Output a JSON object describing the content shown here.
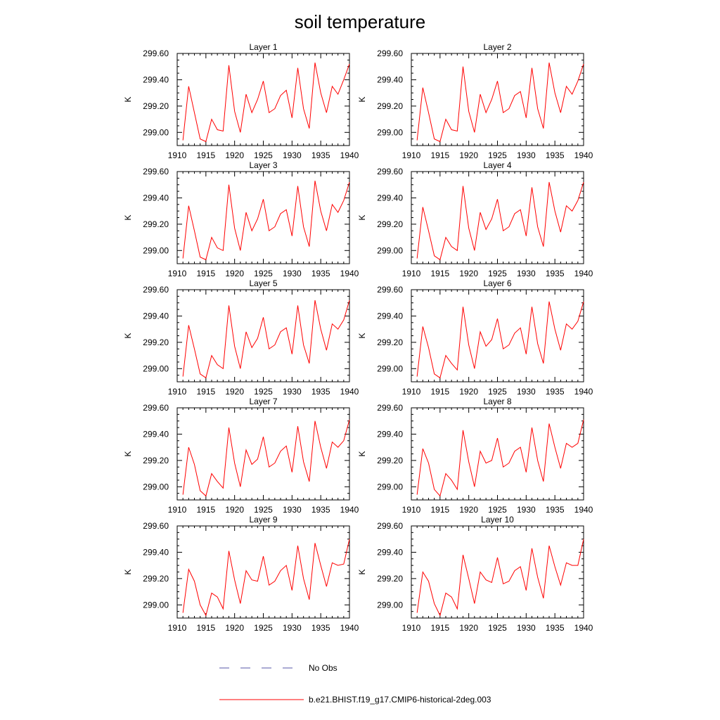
{
  "figure": {
    "title": "soil temperature"
  },
  "legend": {
    "placement": "bottom-center",
    "entries": [
      {
        "label": "No Obs",
        "color": "#5555aa",
        "style": "dashed"
      },
      {
        "label": "b.e21.BHIST.f19_g17.CMIP6-historical-2deg.003",
        "color": "#ff0000",
        "style": "solid"
      }
    ]
  },
  "chart_data": [
    {
      "type": "line",
      "title": "Layer 1",
      "ylabel": "K",
      "xlim": [
        1910,
        1940
      ],
      "ylim": [
        298.9,
        299.6
      ],
      "xticks": [
        "1910",
        "1915",
        "1920",
        "1925",
        "1930",
        "1935",
        "1940"
      ],
      "yticks": [
        "299.00",
        "299.20",
        "299.40",
        "299.60"
      ],
      "x": [
        1911,
        1912,
        1913,
        1914,
        1915,
        1916,
        1917,
        1918,
        1919,
        1920,
        1921,
        1922,
        1923,
        1924,
        1925,
        1926,
        1927,
        1928,
        1929,
        1930,
        1931,
        1932,
        1933,
        1934,
        1935,
        1936,
        1937,
        1938,
        1939,
        1940
      ],
      "series": [
        {
          "color": "#ff0000",
          "values": [
            298.94,
            299.35,
            299.15,
            298.95,
            298.93,
            299.1,
            299.02,
            299.01,
            299.51,
            299.16,
            299.0,
            299.29,
            299.15,
            299.25,
            299.39,
            299.15,
            299.18,
            299.28,
            299.32,
            299.11,
            299.49,
            299.18,
            299.03,
            299.53,
            299.3,
            299.15,
            299.35,
            299.29,
            299.4,
            299.52
          ]
        }
      ]
    },
    {
      "type": "line",
      "title": "Layer 2",
      "ylabel": "K",
      "xlim": [
        1910,
        1940
      ],
      "ylim": [
        298.9,
        299.6
      ],
      "xticks": [
        "1910",
        "1915",
        "1920",
        "1925",
        "1930",
        "1935",
        "1940"
      ],
      "yticks": [
        "299.00",
        "299.20",
        "299.40",
        "299.60"
      ],
      "x": [
        1911,
        1912,
        1913,
        1914,
        1915,
        1916,
        1917,
        1918,
        1919,
        1920,
        1921,
        1922,
        1923,
        1924,
        1925,
        1926,
        1927,
        1928,
        1929,
        1930,
        1931,
        1932,
        1933,
        1934,
        1935,
        1936,
        1937,
        1938,
        1939,
        1940
      ],
      "series": [
        {
          "color": "#ff0000",
          "values": [
            298.94,
            299.34,
            299.15,
            298.95,
            298.93,
            299.1,
            299.02,
            299.01,
            299.5,
            299.16,
            299.0,
            299.29,
            299.15,
            299.25,
            299.39,
            299.15,
            299.18,
            299.28,
            299.31,
            299.11,
            299.49,
            299.18,
            299.03,
            299.53,
            299.3,
            299.15,
            299.35,
            299.29,
            299.39,
            299.52
          ]
        }
      ]
    },
    {
      "type": "line",
      "title": "Layer 3",
      "ylabel": "K",
      "xlim": [
        1910,
        1940
      ],
      "ylim": [
        298.9,
        299.6
      ],
      "xticks": [
        "1910",
        "1915",
        "1920",
        "1925",
        "1930",
        "1935",
        "1940"
      ],
      "yticks": [
        "299.00",
        "299.20",
        "299.40",
        "299.60"
      ],
      "x": [
        1911,
        1912,
        1913,
        1914,
        1915,
        1916,
        1917,
        1918,
        1919,
        1920,
        1921,
        1922,
        1923,
        1924,
        1925,
        1926,
        1927,
        1928,
        1929,
        1930,
        1931,
        1932,
        1933,
        1934,
        1935,
        1936,
        1937,
        1938,
        1939,
        1940
      ],
      "series": [
        {
          "color": "#ff0000",
          "values": [
            298.94,
            299.34,
            299.15,
            298.95,
            298.93,
            299.1,
            299.02,
            299.0,
            299.5,
            299.17,
            299.0,
            299.29,
            299.15,
            299.24,
            299.39,
            299.15,
            299.18,
            299.28,
            299.31,
            299.11,
            299.49,
            299.18,
            299.03,
            299.53,
            299.3,
            299.15,
            299.35,
            299.29,
            299.38,
            299.52
          ]
        }
      ]
    },
    {
      "type": "line",
      "title": "Layer 4",
      "ylabel": "K",
      "xlim": [
        1910,
        1940
      ],
      "ylim": [
        298.9,
        299.6
      ],
      "xticks": [
        "1910",
        "1915",
        "1920",
        "1925",
        "1930",
        "1935",
        "1940"
      ],
      "yticks": [
        "299.00",
        "299.20",
        "299.40",
        "299.60"
      ],
      "x": [
        1911,
        1912,
        1913,
        1914,
        1915,
        1916,
        1917,
        1918,
        1919,
        1920,
        1921,
        1922,
        1923,
        1924,
        1925,
        1926,
        1927,
        1928,
        1929,
        1930,
        1931,
        1932,
        1933,
        1934,
        1935,
        1936,
        1937,
        1938,
        1939,
        1940
      ],
      "series": [
        {
          "color": "#ff0000",
          "values": [
            298.94,
            299.33,
            299.15,
            298.96,
            298.93,
            299.1,
            299.03,
            299.0,
            299.49,
            299.17,
            299.0,
            299.29,
            299.16,
            299.24,
            299.39,
            299.15,
            299.18,
            299.28,
            299.31,
            299.11,
            299.48,
            299.18,
            299.03,
            299.52,
            299.3,
            299.14,
            299.34,
            299.3,
            299.38,
            299.52
          ]
        }
      ]
    },
    {
      "type": "line",
      "title": "Layer 5",
      "ylabel": "K",
      "xlim": [
        1910,
        1940
      ],
      "ylim": [
        298.9,
        299.6
      ],
      "xticks": [
        "1910",
        "1915",
        "1920",
        "1925",
        "1930",
        "1935",
        "1940"
      ],
      "yticks": [
        "299.00",
        "299.20",
        "299.40",
        "299.60"
      ],
      "x": [
        1911,
        1912,
        1913,
        1914,
        1915,
        1916,
        1917,
        1918,
        1919,
        1920,
        1921,
        1922,
        1923,
        1924,
        1925,
        1926,
        1927,
        1928,
        1929,
        1930,
        1931,
        1932,
        1933,
        1934,
        1935,
        1936,
        1937,
        1938,
        1939,
        1940
      ],
      "series": [
        {
          "color": "#ff0000",
          "values": [
            298.94,
            299.33,
            299.15,
            298.96,
            298.93,
            299.1,
            299.03,
            299.0,
            299.48,
            299.17,
            299.0,
            299.28,
            299.16,
            299.23,
            299.39,
            299.15,
            299.18,
            299.28,
            299.31,
            299.11,
            299.48,
            299.18,
            299.04,
            299.52,
            299.3,
            299.14,
            299.34,
            299.3,
            299.37,
            299.52
          ]
        }
      ]
    },
    {
      "type": "line",
      "title": "Layer 6",
      "ylabel": "K",
      "xlim": [
        1910,
        1940
      ],
      "ylim": [
        298.9,
        299.6
      ],
      "xticks": [
        "1910",
        "1915",
        "1920",
        "1925",
        "1930",
        "1935",
        "1940"
      ],
      "yticks": [
        "299.00",
        "299.20",
        "299.40",
        "299.60"
      ],
      "x": [
        1911,
        1912,
        1913,
        1914,
        1915,
        1916,
        1917,
        1918,
        1919,
        1920,
        1921,
        1922,
        1923,
        1924,
        1925,
        1926,
        1927,
        1928,
        1929,
        1930,
        1931,
        1932,
        1933,
        1934,
        1935,
        1936,
        1937,
        1938,
        1939,
        1940
      ],
      "series": [
        {
          "color": "#ff0000",
          "values": [
            298.94,
            299.32,
            299.16,
            298.96,
            298.93,
            299.1,
            299.04,
            298.99,
            299.47,
            299.18,
            299.0,
            299.28,
            299.17,
            299.22,
            299.38,
            299.15,
            299.18,
            299.27,
            299.31,
            299.11,
            299.47,
            299.19,
            299.04,
            299.51,
            299.3,
            299.14,
            299.34,
            299.3,
            299.36,
            299.51
          ]
        }
      ]
    },
    {
      "type": "line",
      "title": "Layer 7",
      "ylabel": "K",
      "xlim": [
        1910,
        1940
      ],
      "ylim": [
        298.9,
        299.6
      ],
      "xticks": [
        "1910",
        "1915",
        "1920",
        "1925",
        "1930",
        "1935",
        "1940"
      ],
      "yticks": [
        "299.00",
        "299.20",
        "299.40",
        "299.60"
      ],
      "x": [
        1911,
        1912,
        1913,
        1914,
        1915,
        1916,
        1917,
        1918,
        1919,
        1920,
        1921,
        1922,
        1923,
        1924,
        1925,
        1926,
        1927,
        1928,
        1929,
        1930,
        1931,
        1932,
        1933,
        1934,
        1935,
        1936,
        1937,
        1938,
        1939,
        1940
      ],
      "series": [
        {
          "color": "#ff0000",
          "values": [
            298.94,
            299.3,
            299.17,
            298.97,
            298.93,
            299.1,
            299.04,
            298.99,
            299.45,
            299.18,
            299.0,
            299.28,
            299.17,
            299.21,
            299.38,
            299.15,
            299.18,
            299.27,
            299.31,
            299.11,
            299.46,
            299.19,
            299.04,
            299.5,
            299.3,
            299.14,
            299.34,
            299.3,
            299.35,
            299.51
          ]
        }
      ]
    },
    {
      "type": "line",
      "title": "Layer 8",
      "ylabel": "K",
      "xlim": [
        1910,
        1940
      ],
      "ylim": [
        298.9,
        299.6
      ],
      "xticks": [
        "1910",
        "1915",
        "1920",
        "1925",
        "1930",
        "1935",
        "1940"
      ],
      "yticks": [
        "299.00",
        "299.20",
        "299.40",
        "299.60"
      ],
      "x": [
        1911,
        1912,
        1913,
        1914,
        1915,
        1916,
        1917,
        1918,
        1919,
        1920,
        1921,
        1922,
        1923,
        1924,
        1925,
        1926,
        1927,
        1928,
        1929,
        1930,
        1931,
        1932,
        1933,
        1934,
        1935,
        1936,
        1937,
        1938,
        1939,
        1940
      ],
      "series": [
        {
          "color": "#ff0000",
          "values": [
            298.94,
            299.29,
            299.18,
            298.98,
            298.93,
            299.1,
            299.05,
            298.98,
            299.43,
            299.19,
            299.0,
            299.27,
            299.18,
            299.2,
            299.37,
            299.15,
            299.18,
            299.27,
            299.3,
            299.11,
            299.45,
            299.2,
            299.04,
            299.48,
            299.3,
            299.14,
            299.33,
            299.3,
            299.33,
            299.51
          ]
        }
      ]
    },
    {
      "type": "line",
      "title": "Layer 9",
      "ylabel": "K",
      "xlim": [
        1910,
        1940
      ],
      "ylim": [
        298.9,
        299.6
      ],
      "xticks": [
        "1910",
        "1915",
        "1920",
        "1925",
        "1930",
        "1935",
        "1940"
      ],
      "yticks": [
        "299.00",
        "299.20",
        "299.40",
        "299.60"
      ],
      "x": [
        1911,
        1912,
        1913,
        1914,
        1915,
        1916,
        1917,
        1918,
        1919,
        1920,
        1921,
        1922,
        1923,
        1924,
        1925,
        1926,
        1927,
        1928,
        1929,
        1930,
        1931,
        1932,
        1933,
        1934,
        1935,
        1936,
        1937,
        1938,
        1939,
        1940
      ],
      "series": [
        {
          "color": "#ff0000",
          "values": [
            298.94,
            299.27,
            299.18,
            299.0,
            298.92,
            299.09,
            299.06,
            298.97,
            299.41,
            299.19,
            299.01,
            299.26,
            299.19,
            299.18,
            299.37,
            299.15,
            299.18,
            299.26,
            299.3,
            299.11,
            299.45,
            299.2,
            299.04,
            299.47,
            299.3,
            299.14,
            299.32,
            299.3,
            299.31,
            299.5
          ]
        }
      ]
    },
    {
      "type": "line",
      "title": "Layer 10",
      "ylabel": "K",
      "xlim": [
        1910,
        1940
      ],
      "ylim": [
        298.9,
        299.6
      ],
      "xticks": [
        "1910",
        "1915",
        "1920",
        "1925",
        "1930",
        "1935",
        "1940"
      ],
      "yticks": [
        "299.00",
        "299.20",
        "299.40",
        "299.60"
      ],
      "x": [
        1911,
        1912,
        1913,
        1914,
        1915,
        1916,
        1917,
        1918,
        1919,
        1920,
        1921,
        1922,
        1923,
        1924,
        1925,
        1926,
        1927,
        1928,
        1929,
        1930,
        1931,
        1932,
        1933,
        1934,
        1935,
        1936,
        1937,
        1938,
        1939,
        1940
      ],
      "series": [
        {
          "color": "#ff0000",
          "values": [
            298.94,
            299.25,
            299.18,
            299.01,
            298.92,
            299.09,
            299.06,
            298.97,
            299.38,
            299.2,
            299.01,
            299.25,
            299.19,
            299.17,
            299.36,
            299.16,
            299.18,
            299.26,
            299.29,
            299.11,
            299.43,
            299.21,
            299.05,
            299.45,
            299.29,
            299.15,
            299.32,
            299.3,
            299.3,
            299.5
          ]
        }
      ]
    }
  ]
}
